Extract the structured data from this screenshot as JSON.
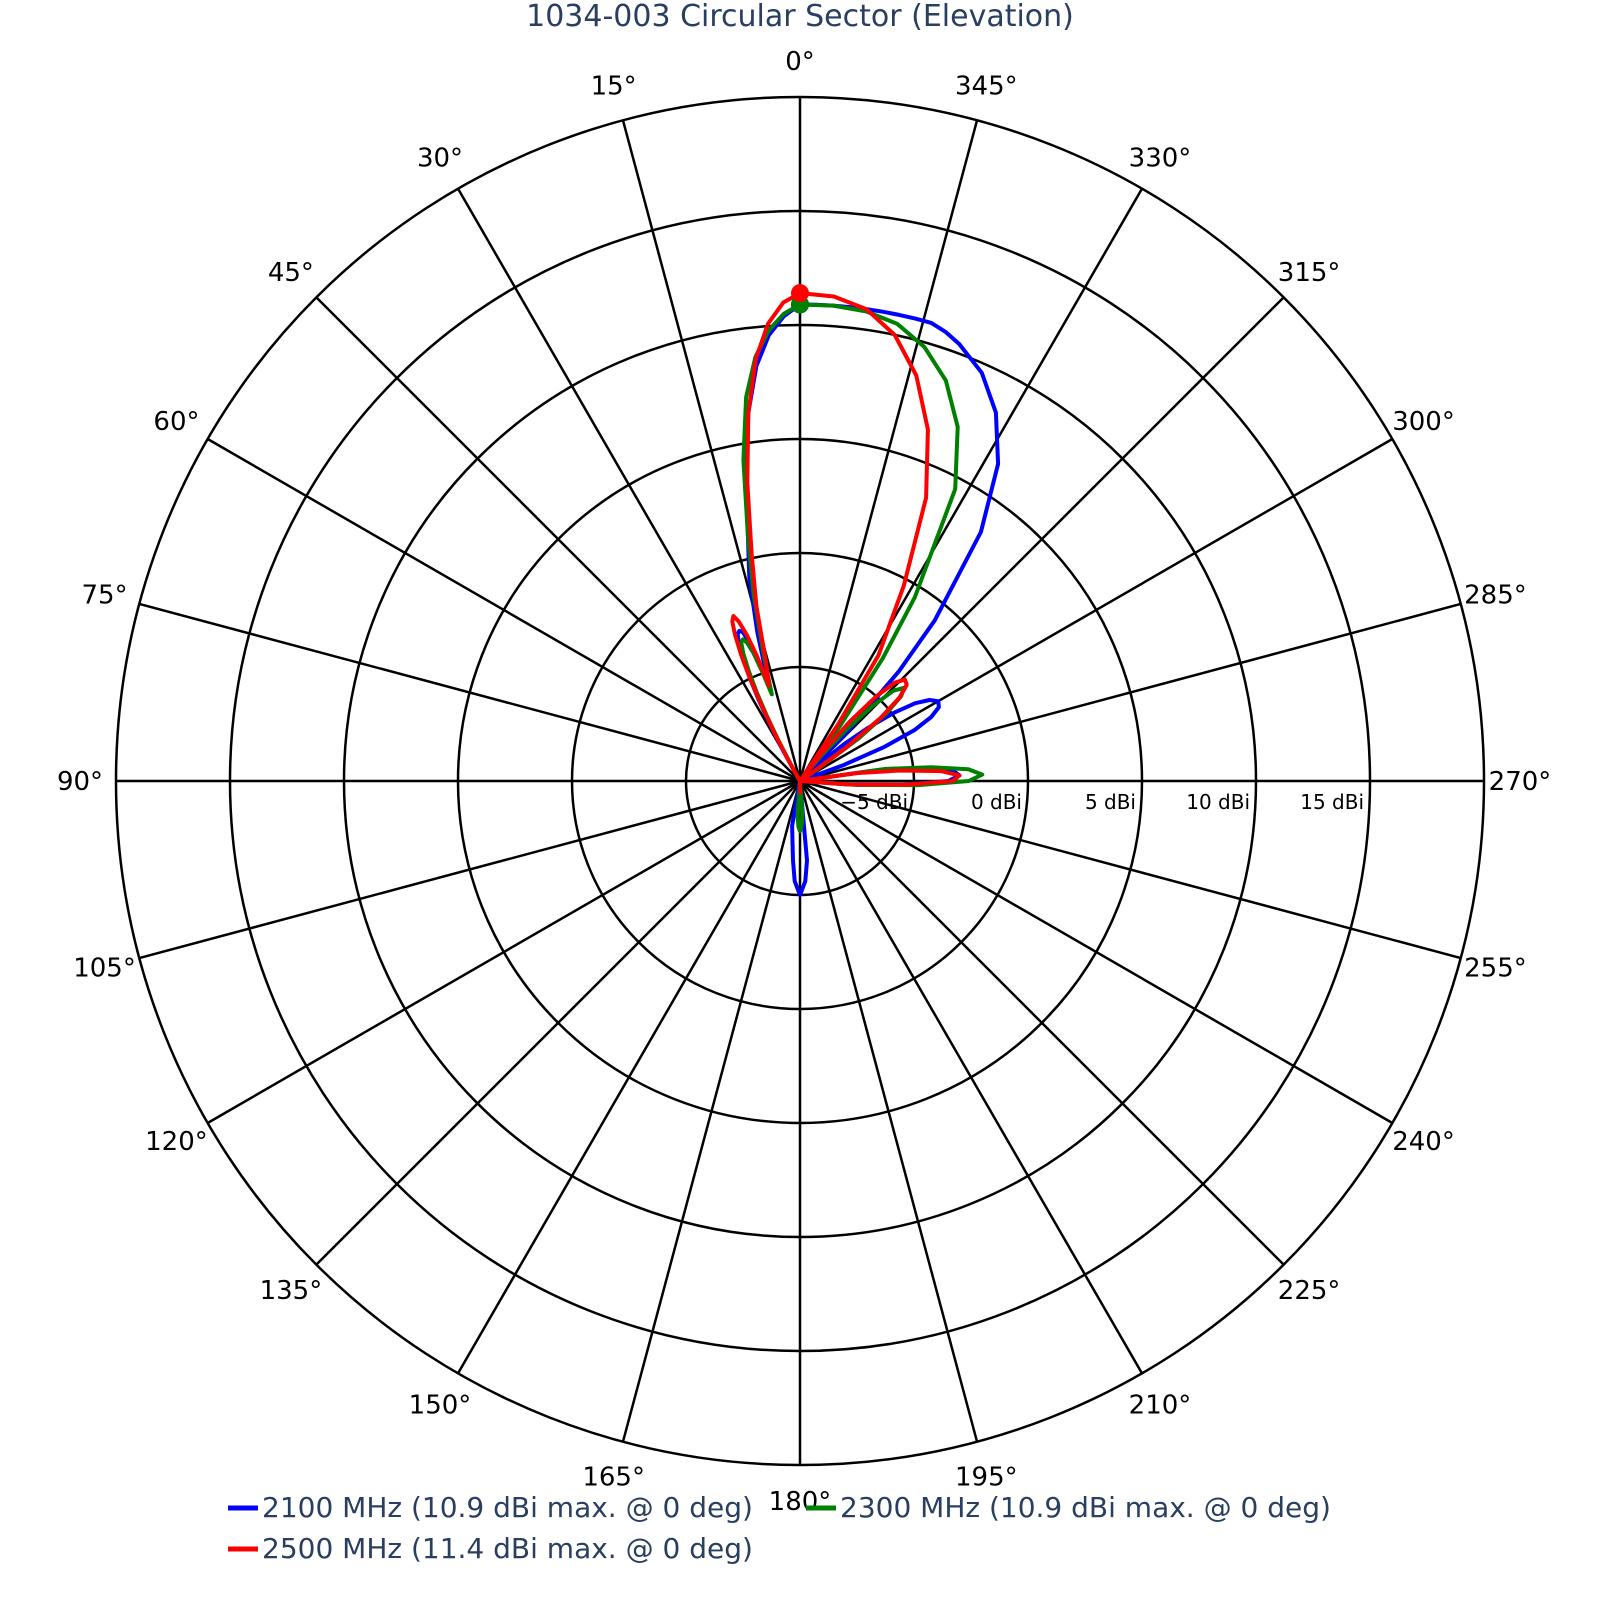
{
  "chart_data": {
    "type": "polar-line",
    "title": "1034-003 Circular Sector (Elevation)",
    "angular_axis": {
      "direction": "counterclockwise",
      "zero_at": "top",
      "tick_labels": [
        "0°",
        "15°",
        "30°",
        "45°",
        "60°",
        "75°",
        "90°",
        "105°",
        "120°",
        "135°",
        "150°",
        "165°",
        "180°",
        "195°",
        "210°",
        "225°",
        "240°",
        "255°",
        "270°",
        "285°",
        "300°",
        "315°",
        "330°",
        "345°"
      ],
      "tick_angles": [
        0,
        15,
        30,
        45,
        60,
        75,
        90,
        105,
        120,
        135,
        150,
        165,
        180,
        195,
        210,
        225,
        240,
        255,
        270,
        285,
        300,
        315,
        330,
        345
      ]
    },
    "radial_axis": {
      "range": [
        -10,
        15
      ],
      "unit": "dBi",
      "tick_values": [
        -5,
        0,
        5,
        10,
        15
      ],
      "tick_labels": [
        "−5 dBi",
        "0 dBi",
        "5 dBi",
        "10 dBi",
        "15 dBi"
      ],
      "grid_values": [
        -5,
        0,
        5,
        10,
        15,
        20
      ],
      "tick_axis_angle": 270
    },
    "grid": true,
    "legend": {
      "position": "bottom"
    },
    "series": [
      {
        "name": "2100 MHz (10.9 dBi max. @ 0 deg)",
        "color": "#0000ff",
        "max": {
          "angle": 0,
          "value": 10.9
        },
        "theta": [
          0,
          2,
          4,
          6,
          8,
          10,
          12,
          14,
          16,
          18,
          19,
          20,
          21,
          22,
          23,
          24,
          25,
          26,
          27,
          28,
          29,
          30,
          32,
          34,
          36,
          40,
          50,
          60,
          90,
          120,
          150,
          170,
          175,
          177,
          180,
          183,
          185,
          190,
          210,
          240,
          262,
          266,
          268,
          270,
          272,
          274,
          276,
          278,
          281,
          284,
          287,
          290,
          292,
          294,
          296,
          298,
          300,
          302,
          304,
          306,
          308,
          310,
          312,
          314,
          316,
          318,
          320,
          324,
          328,
          332,
          336,
          340,
          342,
          344,
          346,
          348,
          350,
          352,
          354,
          356,
          358,
          360
        ],
        "r": [
          10.9,
          10.4,
          9.6,
          8.3,
          6.3,
          3.5,
          1.0,
          -0.8,
          -3.2,
          -5.5,
          -4.6,
          -3.6,
          -3.0,
          -2.9,
          -3.0,
          -3.4,
          -4.1,
          -5.0,
          -6.0,
          -7.2,
          -8.5,
          -9.5,
          -10,
          -10,
          -10,
          -10,
          -10,
          -10,
          -10,
          -10,
          -10,
          -8,
          -6.5,
          -5.6,
          -5.0,
          -5.6,
          -6.5,
          -10,
          -10,
          -10,
          -10,
          -8,
          -5.5,
          -3.5,
          -3.0,
          -3.3,
          -4.5,
          -6.5,
          -10,
          -10,
          -10,
          -8,
          -6,
          -4.5,
          -3.6,
          -3.1,
          -3.0,
          -3.3,
          -3.9,
          -4.9,
          -6.2,
          -7.5,
          -9,
          -10,
          -7,
          -3.5,
          -0.8,
          3.5,
          6.4,
          8.3,
          9.6,
          10.4,
          10.7,
          10.9,
          10.9,
          10.9,
          10.9,
          10.9,
          10.9,
          10.9,
          10.9,
          10.9
        ]
      },
      {
        "name": "2300 MHz (10.9 dBi max. @ 0 deg)",
        "color": "#008000",
        "max": {
          "angle": 0,
          "value": 10.9
        },
        "theta": [
          0,
          2,
          4,
          6,
          8,
          10,
          12,
          14,
          16,
          18,
          19,
          20,
          21,
          22,
          23,
          24,
          25,
          26,
          27,
          28,
          29,
          30,
          32,
          34,
          40,
          60,
          90,
          120,
          150,
          172,
          176,
          178,
          180,
          182,
          184,
          188,
          210,
          240,
          262,
          266,
          268,
          270,
          272,
          274,
          276,
          278,
          281,
          284,
          287,
          290,
          300,
          304,
          306,
          308,
          310,
          312,
          314,
          316,
          318,
          320,
          322,
          324,
          326,
          328,
          332,
          336,
          340,
          344,
          348,
          352,
          356,
          360
        ],
        "r": [
          10.9,
          10.5,
          9.8,
          8.7,
          7.0,
          4.3,
          1.0,
          -1.6,
          -4.2,
          -6.0,
          -5.0,
          -4.0,
          -3.5,
          -3.3,
          -3.4,
          -3.9,
          -4.7,
          -5.7,
          -6.8,
          -8.0,
          -9.2,
          -10,
          -10,
          -10,
          -10,
          -10,
          -10,
          -10,
          -10,
          -10,
          -8.5,
          -8.0,
          -7.8,
          -8.0,
          -8.5,
          -10,
          -10,
          -10,
          -10,
          -7.5,
          -4.8,
          -2.6,
          -2.0,
          -2.6,
          -4.2,
          -6.2,
          -10,
          -10,
          -10,
          -10,
          -10,
          -9,
          -6.8,
          -5.2,
          -4.2,
          -3.9,
          -4.3,
          -5.4,
          -7.0,
          -8.5,
          -10,
          -7,
          -3.5,
          -0.5,
          4.5,
          7.0,
          8.7,
          9.8,
          10.5,
          10.8,
          10.9,
          10.9
        ]
      },
      {
        "name": "2500 MHz (11.4 dBi max. @ 0 deg)",
        "color": "#ff0000",
        "max": {
          "angle": 0,
          "value": 11.4
        },
        "theta": [
          0,
          2,
          4,
          6,
          8,
          10,
          12,
          14,
          16,
          18,
          19,
          20,
          21,
          22,
          23,
          24,
          25,
          26,
          27,
          28,
          29,
          30,
          32,
          36,
          40,
          60,
          90,
          120,
          150,
          175,
          180,
          185,
          210,
          240,
          262,
          266,
          268,
          270,
          272,
          274,
          276,
          278,
          281,
          284,
          290,
          300,
          304,
          306,
          308,
          310,
          312,
          314,
          316,
          318,
          320,
          322,
          324,
          326,
          328,
          332,
          336,
          340,
          344,
          348,
          352,
          356,
          360
        ],
        "r": [
          11.4,
          11.0,
          10.1,
          8.6,
          6.3,
          3.3,
          0.2,
          -2.1,
          -4.6,
          -5.6,
          -4.2,
          -3.2,
          -2.5,
          -2.2,
          -2.4,
          -3.0,
          -3.9,
          -5.0,
          -6.3,
          -7.6,
          -8.8,
          -9.8,
          -10,
          -10,
          -10,
          -10,
          -10,
          -10,
          -10,
          -10,
          -9.5,
          -10,
          -10,
          -10,
          -10,
          -7.8,
          -5.4,
          -3.3,
          -3.0,
          -3.8,
          -5.6,
          -7.5,
          -10,
          -10,
          -10,
          -10,
          -9.5,
          -7.5,
          -5.5,
          -4.3,
          -3.7,
          -3.6,
          -4.0,
          -5.0,
          -6.6,
          -8.5,
          -10,
          -7,
          -3.5,
          -0.3,
          3.6,
          6.4,
          8.5,
          10.0,
          10.9,
          11.3,
          11.4
        ]
      }
    ]
  }
}
